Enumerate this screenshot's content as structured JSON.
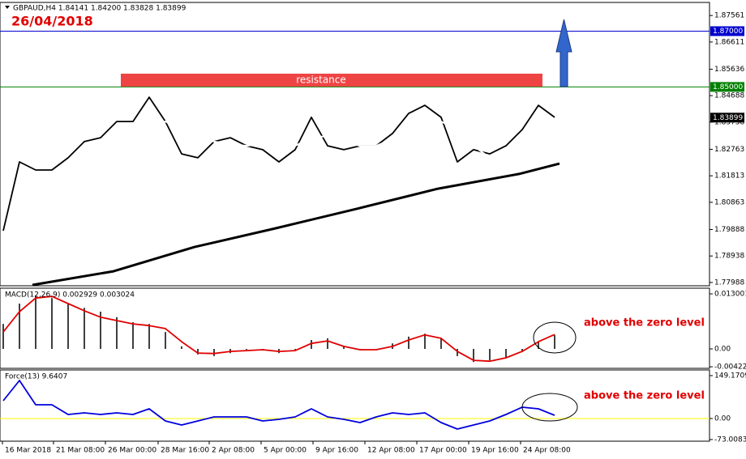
{
  "header": {
    "title": "GBPAUD,H4  1.84141 1.84200 1.83828 1.83899",
    "date": "26/04/2018"
  },
  "annotations": {
    "resistance": "resistance",
    "macd_note": "above the zero level",
    "force_note": "above the zero level"
  },
  "chart_data": [
    {
      "type": "line",
      "x": [
        0,
        5,
        10,
        15,
        20,
        25,
        30,
        35,
        40,
        45,
        50,
        55,
        60,
        65,
        70,
        75,
        80,
        85,
        90,
        95,
        100,
        105,
        110,
        115,
        120,
        125,
        130,
        135,
        140,
        145,
        150,
        155,
        160,
        165,
        170
      ],
      "series": [
        {
          "type": "line",
          "color": "#000000",
          "values": [
            1.7984,
            1.8231,
            1.8202,
            1.8202,
            1.8246,
            1.8304,
            1.8318,
            1.8376,
            1.8376,
            1.8463,
            1.8376,
            1.826,
            1.8246,
            1.8304,
            1.8318,
            1.8289,
            1.8275,
            1.8231,
            1.8275,
            1.8391,
            1.8289,
            1.8275,
            1.8289,
            1.8289,
            1.8333,
            1.8405,
            1.8434,
            1.8391,
            1.8231,
            1.8275,
            1.826,
            1.8289,
            1.8347,
            1.8434,
            1.8391
          ]
        },
        {
          "type": "line",
          "color": "#ffffff",
          "values": [
            1.7796,
            1.7941,
            1.8115,
            1.8173,
            1.8202,
            1.8246,
            1.826,
            1.8289,
            1.8318,
            1.8362,
            1.8376,
            1.8347,
            1.8318,
            1.8304,
            1.8295,
            1.8289,
            1.8295,
            1.8289,
            1.8289,
            1.8318,
            1.8324,
            1.8304,
            1.8289,
            1.8289,
            1.8312,
            1.8347,
            1.837,
            1.8376,
            1.8347,
            1.8289,
            1.8246,
            1.826,
            1.8289,
            1.8318,
            1.8362
          ]
        },
        {
          "type": "line",
          "color": "#000000",
          "x": [
            9,
            34,
            59,
            84,
            109,
            134,
            159,
            171.5
          ],
          "values": [
            1.779,
            1.7839,
            1.7926,
            1.7993,
            1.8063,
            1.8135,
            1.8188,
            1.8225
          ]
        }
      ],
      "ylim": [
        1.7787,
        1.8803
      ],
      "yticks": [
        1.87561,
        1.86611,
        1.85636,
        1.84688,
        1.83738,
        1.82763,
        1.81813,
        1.80863,
        1.79888,
        1.78938,
        1.77988
      ],
      "levels": [
        {
          "value": 1.87,
          "label": "1.87000",
          "color": "#0000cd"
        },
        {
          "value": 1.85,
          "label": "1.85000",
          "color": "#008000"
        }
      ],
      "last_price": 1.83899
    },
    {
      "type": "bar",
      "title": "MACD(12,26,9) 0.002929 0.003024",
      "x": [
        0,
        5,
        10,
        15,
        20,
        25,
        30,
        35,
        40,
        45,
        50,
        55,
        60,
        65,
        70,
        75,
        80,
        85,
        90,
        95,
        100,
        105,
        110,
        115,
        120,
        125,
        130,
        135,
        140,
        145,
        150,
        155,
        160,
        165,
        170
      ],
      "series": [
        {
          "type": "bar",
          "color": "#000000",
          "values": [
            0.0059,
            0.0107,
            0.0126,
            0.012,
            0.0107,
            0.0097,
            0.0088,
            0.0075,
            0.0063,
            0.0059,
            0.004,
            0.0006,
            -0.0013,
            -0.0017,
            -0.001,
            -0.0002,
            -0.0004,
            -0.001,
            -0.0002,
            0.0021,
            0.0025,
            0.0006,
            -0.0002,
            -0.0002,
            0.0013,
            0.0029,
            0.0036,
            0.0025,
            -0.0017,
            -0.0031,
            -0.0027,
            -0.0021,
            -0.0006,
            0.0017,
            0.0033
          ]
        },
        {
          "type": "line",
          "color": "#e00000",
          "values": [
            0.004,
            0.0088,
            0.012,
            0.0124,
            0.0107,
            0.009,
            0.0075,
            0.0067,
            0.0059,
            0.0055,
            0.0048,
            0.0017,
            -0.001,
            -0.0011,
            -0.0006,
            -0.0004,
            -0.0002,
            -0.0006,
            -0.0004,
            0.0013,
            0.0019,
            0.0006,
            -0.0002,
            -0.0002,
            0.0006,
            0.0021,
            0.0033,
            0.0025,
            -0.0006,
            -0.0027,
            -0.0029,
            -0.0021,
            -0.0006,
            0.0017,
            0.0034
          ]
        }
      ],
      "ylim": [
        -0.00459,
        0.01434
      ],
      "yticks": [
        0.013001,
        {
          "value": 0,
          "label": "0.00"
        },
        -0.004222
      ]
    },
    {
      "type": "line",
      "title": "Force(13) 9.6407",
      "x": [
        0,
        5,
        10,
        15,
        20,
        25,
        30,
        35,
        40,
        45,
        50,
        55,
        60,
        65,
        70,
        75,
        80,
        85,
        90,
        95,
        100,
        105,
        110,
        115,
        120,
        125,
        130,
        135,
        140,
        145,
        150,
        155,
        160,
        165,
        170
      ],
      "series": [
        {
          "type": "line",
          "color": "#0000dd",
          "values": [
            61.9,
            132.3,
            47.8,
            47.8,
            14.1,
            19.7,
            14.1,
            19.7,
            14.1,
            33.8,
            -8.4,
            -22.5,
            -8.4,
            5.6,
            5.6,
            5.6,
            -8.4,
            -2.8,
            5.6,
            33.8,
            5.6,
            -2.8,
            -14.1,
            5.6,
            19.7,
            14.1,
            19.7,
            -14.1,
            -36.6,
            -22.5,
            -8.4,
            14.1,
            39.4,
            33.8,
            11.3
          ]
        }
      ],
      "ylim": [
        -78.8,
        168.9
      ],
      "yticks": [
        149.1709,
        {
          "value": 0,
          "label": "0.00"
        },
        -73.0083
      ],
      "levels": [
        {
          "value": 0,
          "color": "#ffff00"
        }
      ],
      "xlim": [
        -1,
        217.75
      ],
      "xticks": [
        {
          "value": -0.25,
          "label": "16 Mar 2018"
        },
        {
          "value": 15.5,
          "label": "21 Mar 08:00"
        },
        {
          "value": 31.5,
          "label": "26 Mar 00:00"
        },
        {
          "value": 47.75,
          "label": "28 Mar 16:00"
        },
        {
          "value": 63.5,
          "label": "2 Apr 08:00"
        },
        {
          "value": 79.5,
          "label": "5 Apr 00:00"
        },
        {
          "value": 95.5,
          "label": "9 Apr 16:00"
        },
        {
          "value": 111.5,
          "label": "12 Apr 08:00"
        },
        {
          "value": 127.5,
          "label": "17 Apr 00:00"
        },
        {
          "value": 143.5,
          "label": "19 Apr 16:00"
        },
        {
          "value": 159.5,
          "label": "24 Apr 08:00"
        }
      ]
    }
  ]
}
